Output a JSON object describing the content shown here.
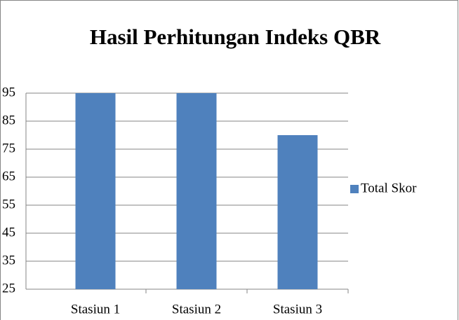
{
  "chart_data": {
    "type": "bar",
    "title": "Hasil Perhitungan Indeks QBR",
    "categories": [
      "Stasiun 1",
      "Stasiun 2",
      "Stasiun 3"
    ],
    "series": [
      {
        "name": "Total Skor",
        "color": "#4f81bd",
        "values": [
          95,
          95,
          80
        ]
      }
    ],
    "ylim": [
      25,
      95
    ],
    "yticks": [
      25,
      35,
      45,
      55,
      65,
      75,
      85,
      95
    ],
    "grid": true,
    "legend": "right"
  }
}
